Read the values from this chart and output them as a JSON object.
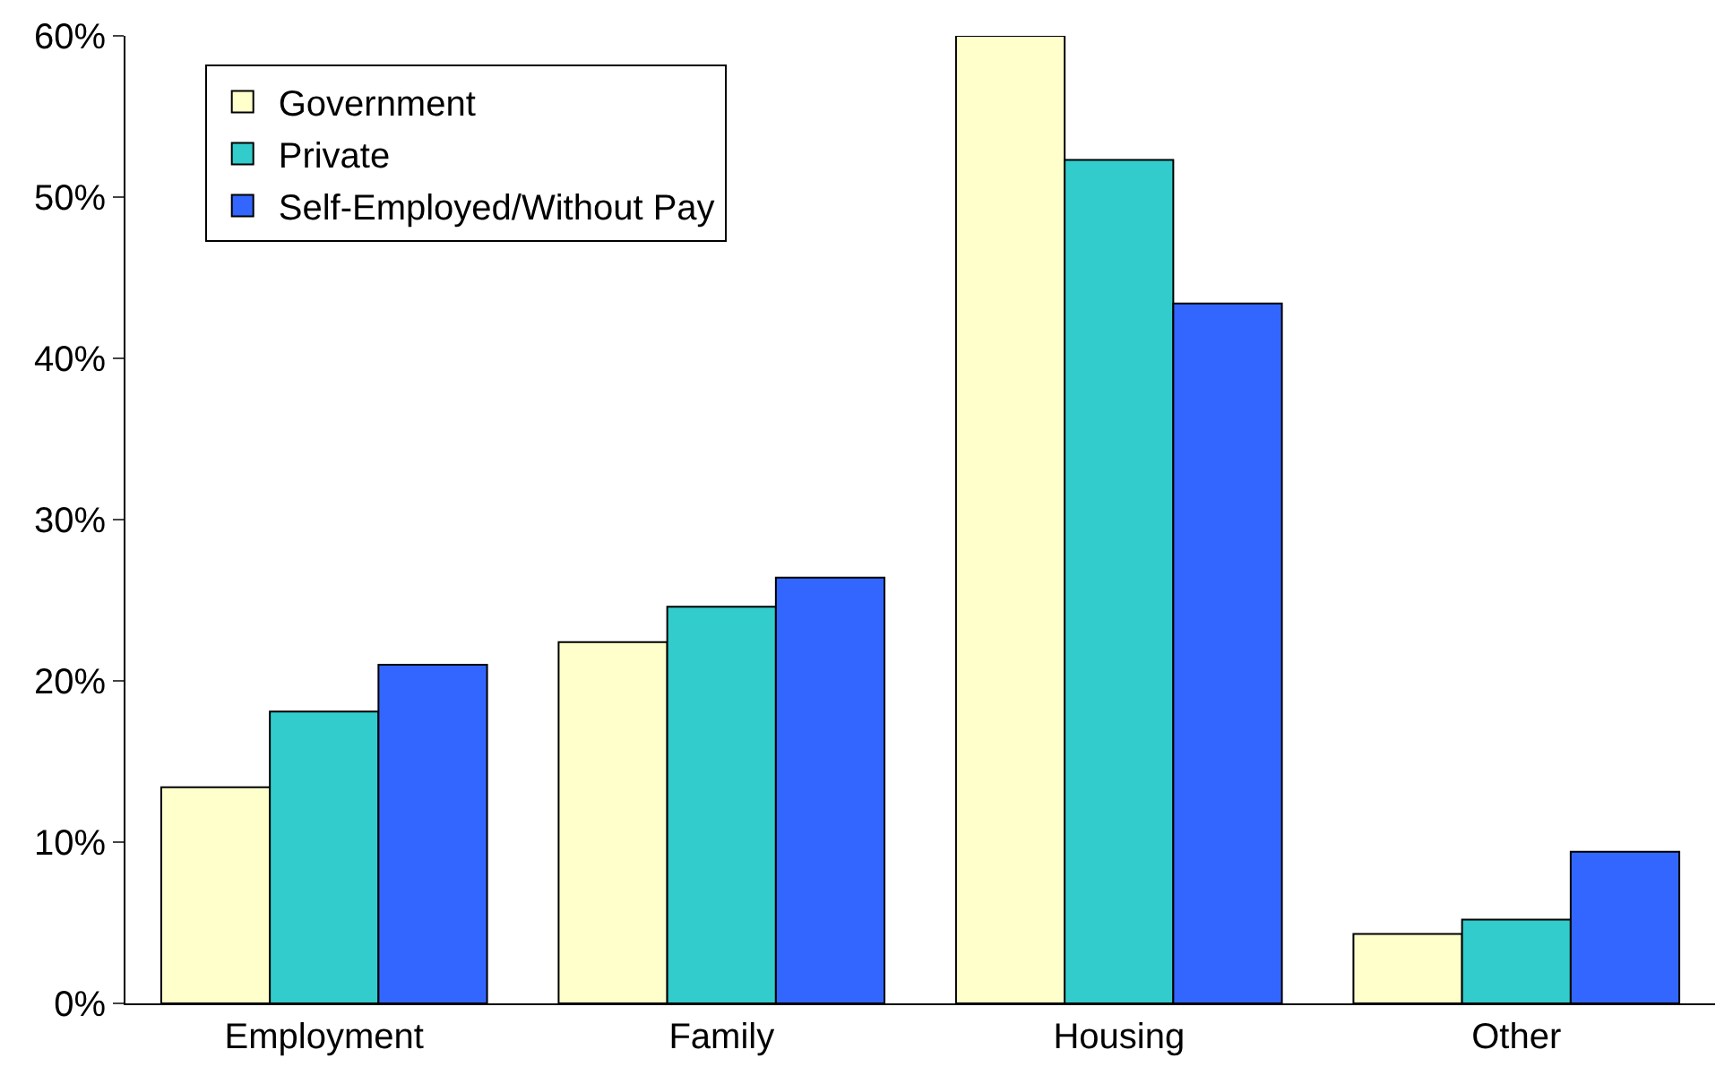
{
  "chart_data": {
    "type": "bar",
    "categories": [
      "Employment",
      "Family",
      "Housing",
      "Other"
    ],
    "series": [
      {
        "name": "Government",
        "color": "#ffffcc",
        "values": [
          13.4,
          22.4,
          60,
          4.3
        ]
      },
      {
        "name": "Private",
        "color": "#33cccc",
        "values": [
          18.1,
          24.6,
          52.3,
          5.2
        ]
      },
      {
        "name": "Self-Employed/Without Pay",
        "color": "#3366ff",
        "values": [
          21.0,
          26.4,
          43.4,
          9.4
        ]
      }
    ],
    "ylim": [
      0,
      60
    ],
    "yticks": [
      {
        "value": 0,
        "label": "0%"
      },
      {
        "value": 10,
        "label": "10%"
      },
      {
        "value": 20,
        "label": "20%"
      },
      {
        "value": 30,
        "label": "30%"
      },
      {
        "value": 40,
        "label": "40%"
      },
      {
        "value": 50,
        "label": "50%"
      },
      {
        "value": 60,
        "label": "60%"
      }
    ],
    "grid": false,
    "legend": "top left"
  }
}
